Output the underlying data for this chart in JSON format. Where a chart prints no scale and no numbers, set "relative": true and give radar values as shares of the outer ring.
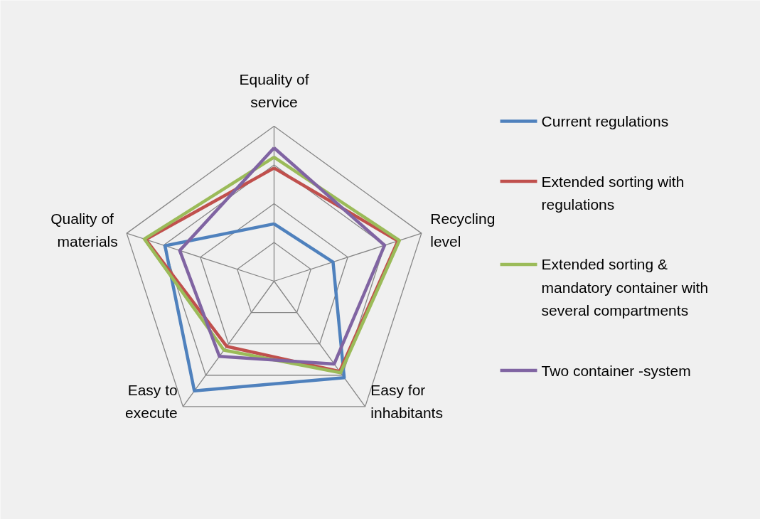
{
  "chart_data": {
    "type": "radar",
    "relative": true,
    "grid": true,
    "legend": "right",
    "categories": [
      "Equality of service",
      "Recycling level",
      "Easy for inhabitants",
      "Easy to execute",
      "Quality  of materials"
    ],
    "series": [
      {
        "name": "Current regulations",
        "color": "#4f81bd",
        "values": [
          0.37,
          0.4,
          0.77,
          0.875,
          0.74
        ]
      },
      {
        "name": "Extended sorting with regulations",
        "color": "#c0504d",
        "values": [
          0.73,
          0.84,
          0.72,
          0.52,
          0.87
        ]
      },
      {
        "name": "Extended sorting & mandatory container with several compartments",
        "color": "#9bbb59",
        "values": [
          0.8,
          0.85,
          0.73,
          0.55,
          0.88
        ]
      },
      {
        "name": "Two container -system",
        "color": "#8064a2",
        "values": [
          0.86,
          0.75,
          0.66,
          0.6,
          0.64
        ]
      }
    ]
  }
}
